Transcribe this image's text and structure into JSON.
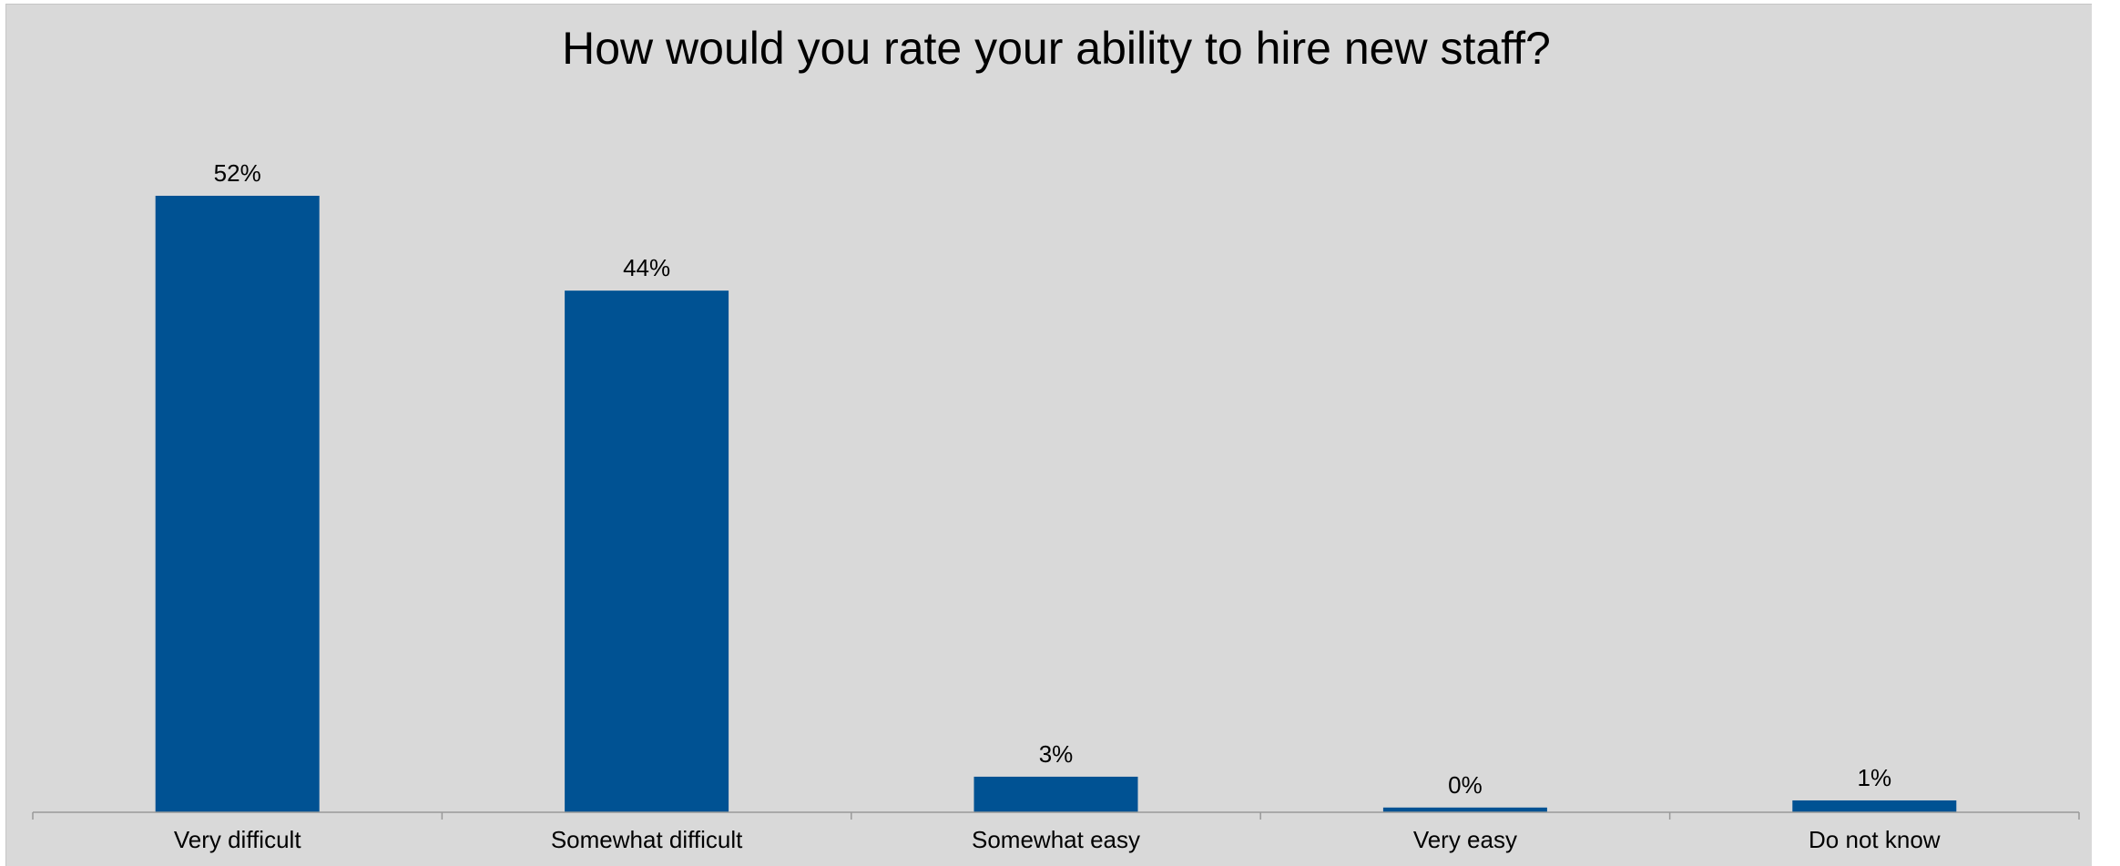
{
  "chart_data": {
    "type": "bar",
    "title": "How would you rate your ability to hire new staff?",
    "categories": [
      "Very difficult",
      "Somewhat difficult",
      "Somewhat easy",
      "Very easy",
      "Do not know"
    ],
    "values": [
      52,
      44,
      3,
      0.4,
      1
    ],
    "data_labels": [
      "52%",
      "44%",
      "3%",
      "0%",
      "1%"
    ],
    "ylim": [
      0,
      60
    ],
    "grid": false,
    "legend": "none",
    "colors": {
      "bar": "#005293",
      "background": "#d9d9d9",
      "axis": "#999999"
    }
  }
}
